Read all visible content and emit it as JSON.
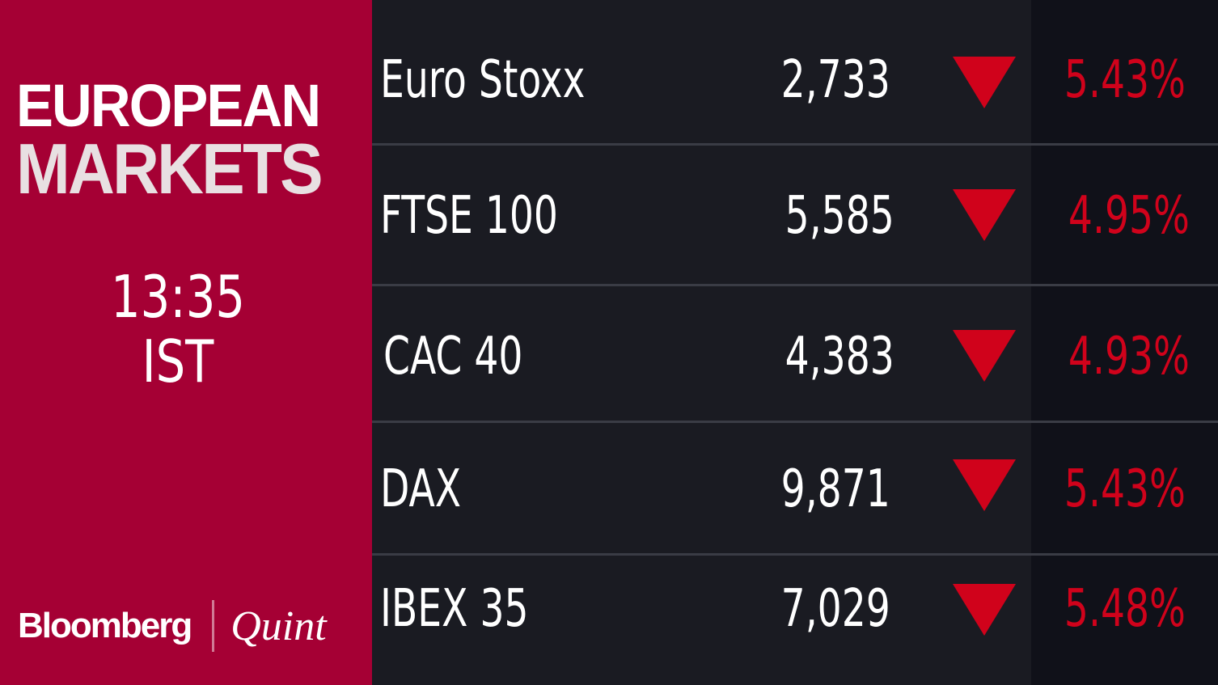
{
  "header": {
    "line1": "EUROPEAN",
    "line2": "MARKETS"
  },
  "time": {
    "clock": "13:35",
    "zone": "IST"
  },
  "logo": {
    "left": "Bloomberg",
    "right": "Quint"
  },
  "colors": {
    "panel": "#a50034",
    "down": "#d0021b"
  },
  "rows": [
    {
      "name": "Euro Stoxx",
      "value": "2,733",
      "direction": "down",
      "change": "5.43%"
    },
    {
      "name": "FTSE 100",
      "value": "5,585",
      "direction": "down",
      "change": "4.95%"
    },
    {
      "name": "CAC 40",
      "value": "4,383",
      "direction": "down",
      "change": "4.93%"
    },
    {
      "name": "DAX",
      "value": "9,871",
      "direction": "down",
      "change": "5.43%"
    },
    {
      "name": "IBEX 35",
      "value": "7,029",
      "direction": "down",
      "change": "5.48%"
    }
  ]
}
